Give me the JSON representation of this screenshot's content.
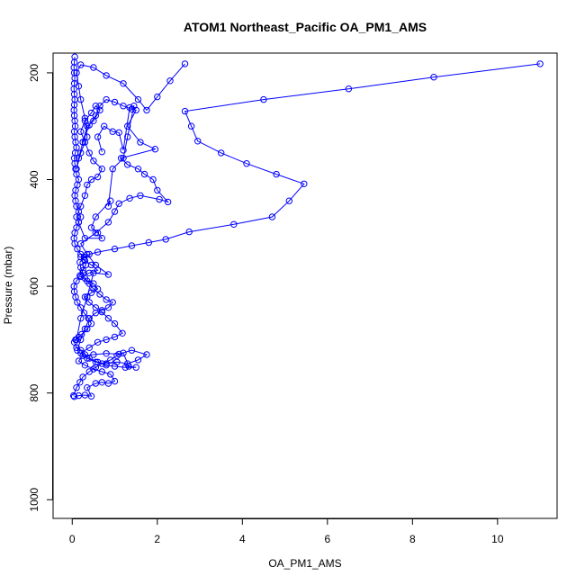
{
  "chart_data": {
    "type": "line",
    "title": "ATOM1 Northeast_Pacific OA_PM1_AMS",
    "xlabel": "OA_PM1_AMS",
    "ylabel": "Pressure (mbar)",
    "xlim": [
      -0.45,
      11.4
    ],
    "ylim": [
      1035,
      163
    ],
    "y_reversed": true,
    "x_ticks": [
      0,
      2,
      4,
      6,
      8,
      10
    ],
    "y_ticks": [
      200,
      400,
      600,
      800,
      1000
    ],
    "grid": false,
    "series": [
      {
        "color": "#0000ff",
        "marker": "open-circle",
        "points": [
          [
            0.03,
            805
          ],
          [
            0.1,
            790
          ],
          [
            0.18,
            780
          ],
          [
            0.25,
            770
          ],
          [
            0.4,
            760
          ],
          [
            0.55,
            752
          ],
          [
            0.7,
            745
          ],
          [
            0.9,
            738
          ],
          [
            1.05,
            730
          ],
          [
            1.2,
            725
          ],
          [
            1.33,
            750
          ],
          [
            1.5,
            752
          ],
          [
            1.25,
            752
          ],
          [
            1.0,
            750
          ],
          [
            0.8,
            748
          ],
          [
            0.6,
            742
          ],
          [
            0.4,
            735
          ],
          [
            0.3,
            728
          ],
          [
            0.2,
            720
          ],
          [
            0.1,
            715
          ],
          [
            0.05,
            705
          ],
          [
            0.08,
            700
          ],
          [
            0.15,
            695
          ],
          [
            0.22,
            690
          ],
          [
            0.35,
            680
          ],
          [
            0.45,
            670
          ],
          [
            0.38,
            660
          ],
          [
            0.28,
            650
          ],
          [
            0.2,
            640
          ],
          [
            0.12,
            630
          ],
          [
            0.08,
            620
          ],
          [
            0.05,
            610
          ],
          [
            0.04,
            600
          ],
          [
            0.1,
            590
          ],
          [
            0.18,
            580
          ],
          [
            0.25,
            570
          ],
          [
            0.32,
            560
          ],
          [
            0.28,
            550
          ],
          [
            0.2,
            540
          ],
          [
            0.12,
            530
          ],
          [
            0.06,
            520
          ],
          [
            0.04,
            510
          ],
          [
            0.06,
            500
          ],
          [
            0.1,
            490
          ],
          [
            0.15,
            480
          ],
          [
            0.2,
            470
          ],
          [
            0.15,
            460
          ],
          [
            0.1,
            450
          ],
          [
            0.08,
            440
          ],
          [
            0.06,
            430
          ],
          [
            0.08,
            420
          ],
          [
            0.12,
            410
          ],
          [
            0.15,
            400
          ],
          [
            0.1,
            390
          ],
          [
            0.08,
            380
          ],
          [
            0.06,
            370
          ],
          [
            0.05,
            360
          ],
          [
            0.07,
            350
          ],
          [
            0.1,
            340
          ],
          [
            0.08,
            330
          ],
          [
            0.06,
            320
          ],
          [
            0.05,
            310
          ],
          [
            0.07,
            300
          ],
          [
            0.06,
            290
          ],
          [
            0.05,
            280
          ],
          [
            0.04,
            270
          ],
          [
            0.05,
            260
          ],
          [
            0.06,
            250
          ],
          [
            0.05,
            240
          ],
          [
            0.04,
            230
          ],
          [
            0.05,
            220
          ],
          [
            0.06,
            210
          ],
          [
            0.05,
            200
          ],
          [
            0.04,
            190
          ],
          [
            0.05,
            180
          ],
          [
            0.06,
            170
          ]
        ]
      },
      {
        "color": "#0000ff",
        "marker": "open-circle",
        "points": [
          [
            0.12,
            720
          ],
          [
            0.2,
            700
          ],
          [
            0.3,
            680
          ],
          [
            0.4,
            660
          ],
          [
            0.55,
            650
          ],
          [
            0.7,
            645
          ],
          [
            0.85,
            640
          ],
          [
            0.95,
            630
          ],
          [
            0.8,
            625
          ],
          [
            0.65,
            615
          ],
          [
            0.5,
            605
          ],
          [
            0.4,
            595
          ],
          [
            0.3,
            585
          ],
          [
            0.25,
            575
          ],
          [
            0.2,
            565
          ],
          [
            0.18,
            555
          ],
          [
            0.28,
            545
          ],
          [
            0.4,
            540
          ],
          [
            0.6,
            536
          ],
          [
            1.0,
            530
          ],
          [
            1.4,
            524
          ],
          [
            1.8,
            518
          ],
          [
            2.2,
            512
          ],
          [
            2.75,
            498
          ],
          [
            3.8,
            484
          ],
          [
            4.7,
            470
          ],
          [
            5.1,
            440
          ],
          [
            5.45,
            408
          ],
          [
            4.8,
            390
          ],
          [
            4.1,
            370
          ],
          [
            3.5,
            350
          ],
          [
            2.95,
            328
          ],
          [
            2.8,
            300
          ],
          [
            2.65,
            272
          ],
          [
            4.5,
            250
          ],
          [
            6.5,
            230
          ],
          [
            8.5,
            208
          ],
          [
            11.0,
            183
          ]
        ]
      },
      {
        "color": "#0000ff",
        "marker": "open-circle",
        "points": [
          [
            0.1,
            700
          ],
          [
            0.2,
            660
          ],
          [
            0.35,
            620
          ],
          [
            0.5,
            575
          ],
          [
            0.85,
            578
          ],
          [
            0.55,
            560
          ],
          [
            0.35,
            540
          ],
          [
            0.2,
            520
          ],
          [
            0.55,
            500
          ],
          [
            0.85,
            480
          ],
          [
            1.0,
            460
          ],
          [
            1.1,
            445
          ],
          [
            1.35,
            435
          ],
          [
            1.6,
            430
          ],
          [
            2.05,
            437
          ],
          [
            2.25,
            442
          ],
          [
            2.0,
            420
          ],
          [
            1.9,
            400
          ],
          [
            1.7,
            390
          ],
          [
            1.55,
            380
          ],
          [
            1.3,
            372
          ],
          [
            1.15,
            360
          ],
          [
            1.95,
            343
          ],
          [
            1.6,
            330
          ],
          [
            1.3,
            300
          ],
          [
            1.5,
            270
          ],
          [
            1.4,
            268
          ],
          [
            1.2,
            262
          ],
          [
            1.0,
            255
          ],
          [
            0.8,
            250
          ],
          [
            0.65,
            262
          ],
          [
            0.55,
            280
          ],
          [
            0.4,
            298
          ],
          [
            0.25,
            330
          ],
          [
            0.15,
            360
          ],
          [
            0.1,
            380
          ],
          [
            0.2,
            350
          ],
          [
            0.35,
            320
          ],
          [
            0.3,
            285
          ],
          [
            0.2,
            250
          ],
          [
            0.15,
            225
          ],
          [
            0.1,
            200
          ],
          [
            0.2,
            185
          ],
          [
            0.5,
            190
          ],
          [
            0.8,
            205
          ],
          [
            1.2,
            220
          ],
          [
            1.55,
            250
          ],
          [
            1.75,
            270
          ],
          [
            2.0,
            245
          ],
          [
            2.3,
            215
          ],
          [
            2.65,
            183
          ]
        ]
      },
      {
        "color": "#0000ff",
        "marker": "open-circle",
        "points": [
          [
            0.7,
            348
          ],
          [
            0.6,
            320
          ],
          [
            0.75,
            300
          ],
          [
            0.95,
            310
          ],
          [
            1.1,
            312
          ],
          [
            1.2,
            345
          ],
          [
            1.35,
            265
          ],
          [
            1.45,
            262
          ],
          [
            1.3,
            320
          ],
          [
            1.2,
            360
          ],
          [
            0.95,
            380
          ],
          [
            0.85,
            450
          ],
          [
            0.9,
            440
          ],
          [
            0.55,
            470
          ],
          [
            0.45,
            490
          ],
          [
            0.6,
            500
          ],
          [
            0.7,
            510
          ],
          [
            0.3,
            510
          ],
          [
            0.15,
            480
          ],
          [
            0.1,
            470
          ],
          [
            0.2,
            450
          ],
          [
            0.3,
            430
          ],
          [
            0.35,
            410
          ],
          [
            0.45,
            400
          ],
          [
            0.6,
            395
          ],
          [
            0.7,
            380
          ],
          [
            0.5,
            365
          ],
          [
            0.4,
            350
          ],
          [
            0.3,
            330
          ],
          [
            0.2,
            310
          ],
          [
            0.3,
            290
          ],
          [
            0.45,
            275
          ],
          [
            0.55,
            262
          ],
          [
            0.65,
            270
          ],
          [
            0.5,
            290
          ],
          [
            0.35,
            300
          ],
          [
            0.25,
            330
          ]
        ]
      },
      {
        "color": "#0000ff",
        "marker": "open-circle",
        "points": [
          [
            0.05,
            807
          ],
          [
            0.15,
            805
          ],
          [
            0.3,
            804
          ],
          [
            0.45,
            806
          ],
          [
            0.35,
            790
          ],
          [
            0.55,
            782
          ],
          [
            0.7,
            780
          ],
          [
            0.85,
            782
          ],
          [
            1.0,
            778
          ],
          [
            0.9,
            765
          ],
          [
            0.7,
            760
          ],
          [
            0.5,
            755
          ],
          [
            0.3,
            748
          ],
          [
            0.15,
            740
          ],
          [
            0.25,
            730
          ],
          [
            0.5,
            728
          ],
          [
            0.8,
            726
          ],
          [
            1.1,
            727
          ],
          [
            1.4,
            720
          ],
          [
            1.75,
            728
          ],
          [
            1.55,
            738
          ],
          [
            1.3,
            745
          ],
          [
            1.05,
            742
          ],
          [
            0.8,
            745
          ],
          [
            0.55,
            742
          ],
          [
            0.35,
            735
          ],
          [
            0.2,
            725
          ],
          [
            0.4,
            715
          ],
          [
            0.6,
            705
          ],
          [
            0.8,
            700
          ],
          [
            1.0,
            695
          ],
          [
            1.18,
            688
          ],
          [
            1.0,
            670
          ],
          [
            0.85,
            660
          ],
          [
            0.7,
            648
          ],
          [
            0.55,
            640
          ],
          [
            0.4,
            630
          ],
          [
            0.3,
            620
          ],
          [
            0.45,
            612
          ],
          [
            0.6,
            605
          ],
          [
            0.5,
            595
          ],
          [
            0.35,
            590
          ],
          [
            0.2,
            582
          ],
          [
            0.4,
            575
          ],
          [
            0.6,
            570
          ],
          [
            0.45,
            560
          ],
          [
            0.3,
            552
          ],
          [
            0.2,
            545
          ]
        ]
      }
    ]
  }
}
